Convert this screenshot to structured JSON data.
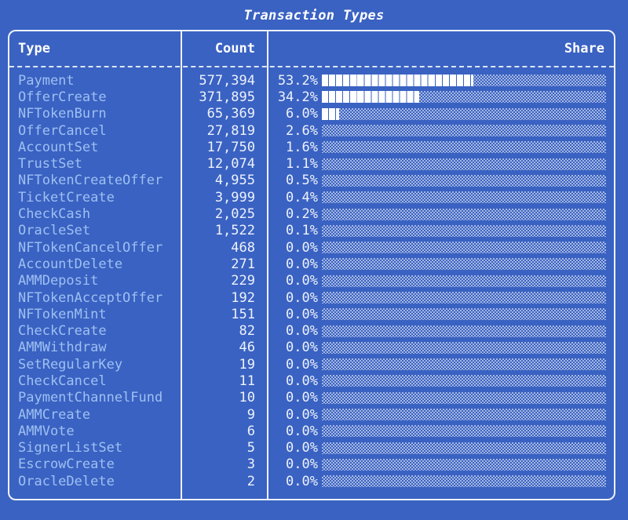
{
  "colors": {
    "bg": "#3A62C2",
    "border": "#ECF1FC",
    "type_text": "#9EC0F2",
    "value_text": "#EDF2FC",
    "header_text": "#FFFFFF",
    "bar_fill": "#FFFFFF"
  },
  "chart_data": {
    "type": "bar",
    "orientation": "horizontal",
    "title": "Transaction Types",
    "columns": [
      "Type",
      "Count",
      "Share"
    ],
    "bar_axis_max_pct": 100,
    "bar_style": "segmented-blocks-filled, checker-hatch-track",
    "rows": [
      {
        "type": "Payment",
        "count": "577,394",
        "share": "53.2%",
        "bar_pct": 53.2
      },
      {
        "type": "OfferCreate",
        "count": "371,895",
        "share": "34.2%",
        "bar_pct": 34.2
      },
      {
        "type": "NFTokenBurn",
        "count": "65,369",
        "share": "6.0%",
        "bar_pct": 6.0
      },
      {
        "type": "OfferCancel",
        "count": "27,819",
        "share": "2.6%",
        "bar_pct": 0
      },
      {
        "type": "AccountSet",
        "count": "17,750",
        "share": "1.6%",
        "bar_pct": 0
      },
      {
        "type": "TrustSet",
        "count": "12,074",
        "share": "1.1%",
        "bar_pct": 0
      },
      {
        "type": "NFTokenCreateOffer",
        "count": "4,955",
        "share": "0.5%",
        "bar_pct": 0
      },
      {
        "type": "TicketCreate",
        "count": "3,999",
        "share": "0.4%",
        "bar_pct": 0
      },
      {
        "type": "CheckCash",
        "count": "2,025",
        "share": "0.2%",
        "bar_pct": 0
      },
      {
        "type": "OracleSet",
        "count": "1,522",
        "share": "0.1%",
        "bar_pct": 0
      },
      {
        "type": "NFTokenCancelOffer",
        "count": "468",
        "share": "0.0%",
        "bar_pct": 0
      },
      {
        "type": "AccountDelete",
        "count": "271",
        "share": "0.0%",
        "bar_pct": 0
      },
      {
        "type": "AMMDeposit",
        "count": "229",
        "share": "0.0%",
        "bar_pct": 0
      },
      {
        "type": "NFTokenAcceptOffer",
        "count": "192",
        "share": "0.0%",
        "bar_pct": 0
      },
      {
        "type": "NFTokenMint",
        "count": "151",
        "share": "0.0%",
        "bar_pct": 0
      },
      {
        "type": "CheckCreate",
        "count": "82",
        "share": "0.0%",
        "bar_pct": 0
      },
      {
        "type": "AMMWithdraw",
        "count": "46",
        "share": "0.0%",
        "bar_pct": 0
      },
      {
        "type": "SetRegularKey",
        "count": "19",
        "share": "0.0%",
        "bar_pct": 0
      },
      {
        "type": "CheckCancel",
        "count": "11",
        "share": "0.0%",
        "bar_pct": 0
      },
      {
        "type": "PaymentChannelFund",
        "count": "10",
        "share": "0.0%",
        "bar_pct": 0
      },
      {
        "type": "AMMCreate",
        "count": "9",
        "share": "0.0%",
        "bar_pct": 0
      },
      {
        "type": "AMMVote",
        "count": "6",
        "share": "0.0%",
        "bar_pct": 0
      },
      {
        "type": "SignerListSet",
        "count": "5",
        "share": "0.0%",
        "bar_pct": 0
      },
      {
        "type": "EscrowCreate",
        "count": "3",
        "share": "0.0%",
        "bar_pct": 0
      },
      {
        "type": "OracleDelete",
        "count": "2",
        "share": "0.0%",
        "bar_pct": 0
      }
    ]
  }
}
